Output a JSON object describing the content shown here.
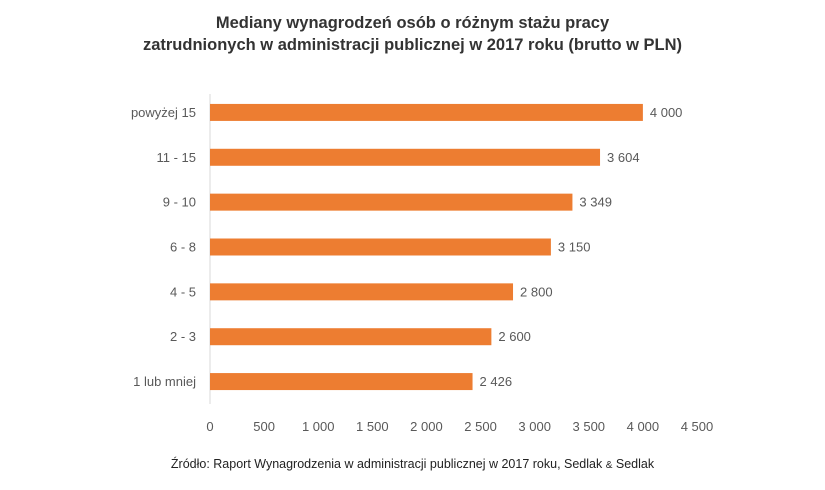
{
  "title_line1": "Mediany wynagrodzeń osób o różnym stażu pracy",
  "title_line2": "zatrudnionych w administracji publicznej w 2017 roku (brutto w PLN)",
  "source": {
    "prefix": "Źródło: Raport Wynagrodzenia w administracji publicznej w 2017 roku, Sedlak ",
    "amp": "&",
    "suffix": " Sedlak"
  },
  "chart_data": {
    "type": "bar",
    "orientation": "horizontal",
    "title": "Mediany wynagrodzeń osób o różnym stażu pracy zatrudnionych w administracji publicznej w 2017 roku (brutto w PLN)",
    "categories": [
      "powyżej 15",
      "11 - 15",
      "9 - 10",
      "6 - 8",
      "4 - 5",
      "2 - 3",
      "1 lub mniej"
    ],
    "values": [
      4000,
      3604,
      3349,
      3150,
      2800,
      2600,
      2426
    ],
    "value_labels": [
      "4 000",
      "3 604",
      "3 349",
      "3 150",
      "2 800",
      "2 600",
      "2 426"
    ],
    "xlim": [
      0,
      4500
    ],
    "xticks": [
      0,
      500,
      1000,
      1500,
      2000,
      2500,
      3000,
      3500,
      4000,
      4500
    ],
    "xtick_labels": [
      "0",
      "500",
      "1 000",
      "1 500",
      "2 000",
      "2 500",
      "3 000",
      "3 500",
      "4 000",
      "4 500"
    ],
    "xlabel": "",
    "ylabel": "",
    "grid": false,
    "legend": "none",
    "bar_color": "#ED7D31"
  }
}
